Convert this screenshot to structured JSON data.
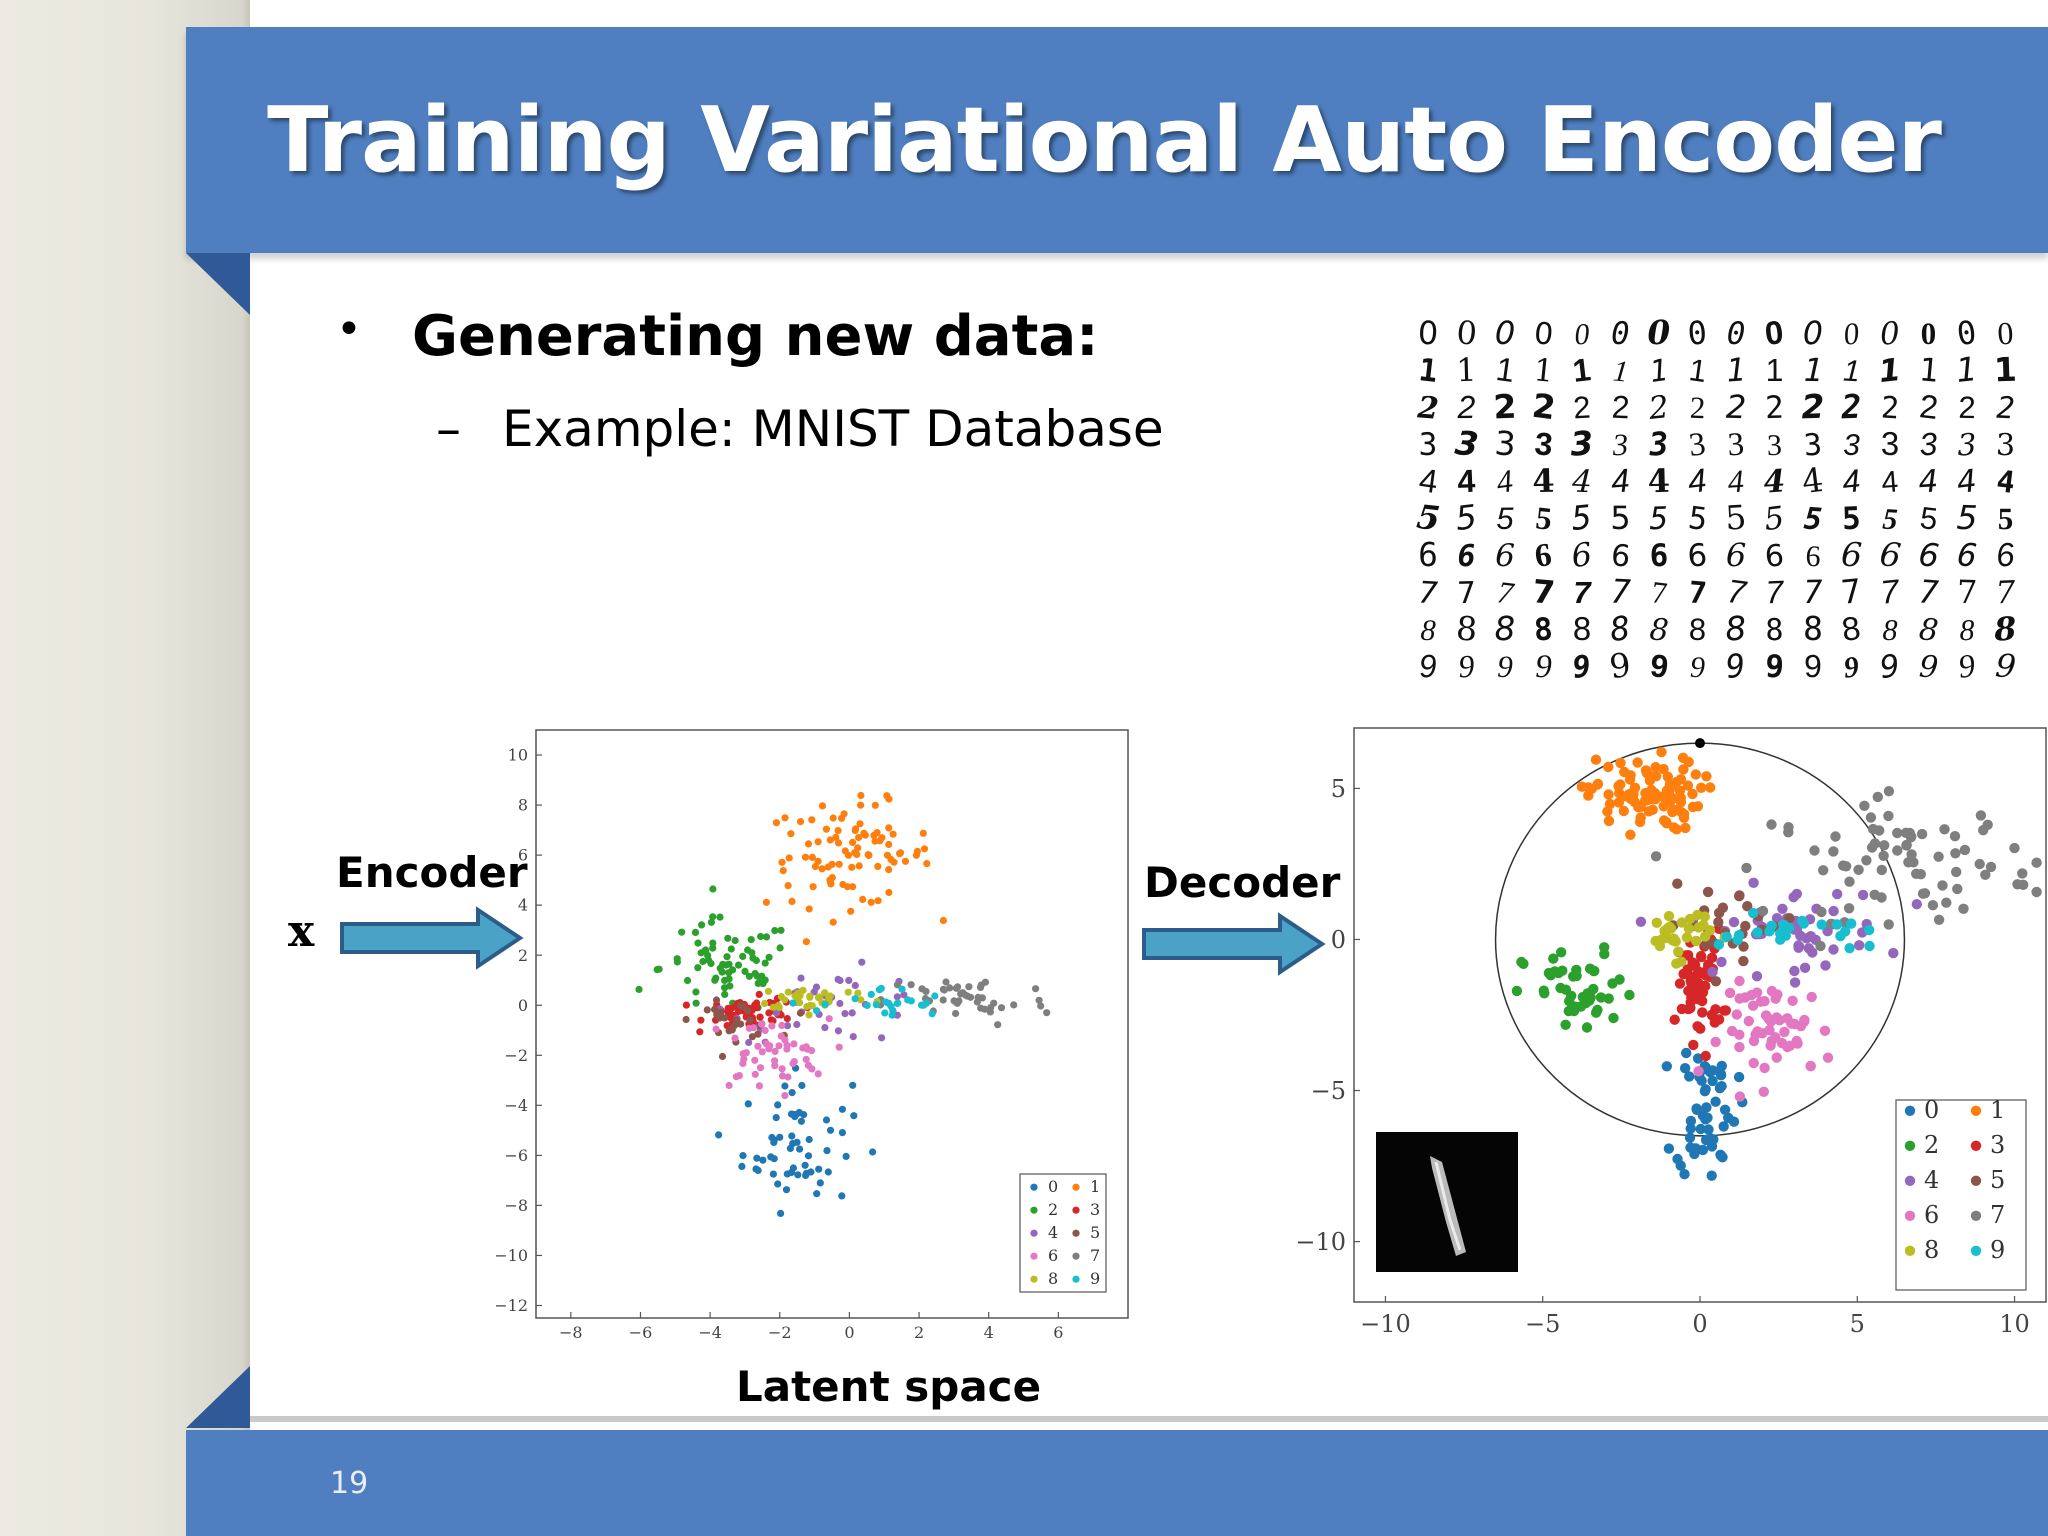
{
  "slide": {
    "title": "Training Variational Auto Encoder",
    "bullet": "Generating new data:",
    "sub_bullet": "Example: MNIST Database",
    "page_number": "19"
  },
  "labels": {
    "x": "x",
    "encoder": "Encoder",
    "decoder": "Decoder",
    "latent_space": "Latent space"
  },
  "mnist_rows": [
    "0",
    "1",
    "2",
    "3",
    "4",
    "5",
    "6",
    "7",
    "8",
    "9"
  ],
  "colors": {
    "brand_blue": "#4f7fc0",
    "arrow_fill": "#4aa3c6",
    "arrow_stroke": "#2c5d8a",
    "digit_colors": [
      "#1f77b4",
      "#ff7f0e",
      "#2ca02c",
      "#d62728",
      "#9467bd",
      "#8c564b",
      "#e377c2",
      "#7f7f7f",
      "#bcbd22",
      "#17becf"
    ]
  },
  "chart_data": [
    {
      "type": "scatter",
      "name": "latent-space",
      "xlim": [
        -9,
        8
      ],
      "ylim": [
        -12.5,
        11
      ],
      "x_ticks": [
        "-8",
        "-6",
        "-4",
        "-2",
        "0",
        "2",
        "4",
        "6"
      ],
      "y_ticks": [
        "10",
        "8",
        "6",
        "4",
        "2",
        "0",
        "-2",
        "-4",
        "-6",
        "-8",
        "-10",
        "-12"
      ],
      "legend": [
        "0",
        "1",
        "2",
        "3",
        "4",
        "5",
        "6",
        "7",
        "8",
        "9"
      ],
      "legend_position": "bottom-right",
      "clusters": [
        {
          "digit": "0",
          "center": [
            -1.5,
            -5.5
          ],
          "spread": [
            1.3,
            2.2
          ],
          "count": 60
        },
        {
          "digit": "1",
          "center": [
            0.0,
            6.0
          ],
          "spread": [
            2.0,
            1.7
          ],
          "count": 90
        },
        {
          "digit": "2",
          "center": [
            -3.5,
            1.5
          ],
          "spread": [
            1.6,
            1.6
          ],
          "count": 70
        },
        {
          "digit": "3",
          "center": [
            -2.8,
            -0.3
          ],
          "spread": [
            1.1,
            0.5
          ],
          "count": 60
        },
        {
          "digit": "4",
          "center": [
            -0.5,
            0.0
          ],
          "spread": [
            2.4,
            1.2
          ],
          "count": 35
        },
        {
          "digit": "5",
          "center": [
            -3.3,
            -0.6
          ],
          "spread": [
            1.0,
            0.6
          ],
          "count": 25
        },
        {
          "digit": "6",
          "center": [
            -2.4,
            -2.0
          ],
          "spread": [
            1.5,
            1.2
          ],
          "count": 50
        },
        {
          "digit": "7",
          "center": [
            3.4,
            0.2
          ],
          "spread": [
            2.0,
            0.9
          ],
          "count": 45
        },
        {
          "digit": "8",
          "center": [
            -1.0,
            0.3
          ],
          "spread": [
            1.4,
            0.4
          ],
          "count": 35
        },
        {
          "digit": "9",
          "center": [
            1.0,
            0.0
          ],
          "spread": [
            1.5,
            0.6
          ],
          "count": 25
        }
      ]
    },
    {
      "type": "scatter",
      "name": "decoder-space",
      "xlim": [
        -11,
        11
      ],
      "ylim": [
        -12,
        7
      ],
      "x_ticks": [
        "-10",
        "-5",
        "0",
        "5",
        "10"
      ],
      "y_ticks": [
        "5",
        "0",
        "-5",
        "-10"
      ],
      "legend": [
        "0",
        "1",
        "2",
        "3",
        "4",
        "5",
        "6",
        "7",
        "8",
        "9"
      ],
      "legend_position": "bottom-right",
      "circle": {
        "center": [
          0,
          0
        ],
        "radius": 6.5
      },
      "clusters": [
        {
          "digit": "0",
          "center": [
            0.2,
            -5.5
          ],
          "spread": [
            0.8,
            2.0
          ],
          "count": 55
        },
        {
          "digit": "1",
          "center": [
            -1.8,
            4.8
          ],
          "spread": [
            1.5,
            1.0
          ],
          "count": 90
        },
        {
          "digit": "2",
          "center": [
            -3.8,
            -1.8
          ],
          "spread": [
            1.5,
            1.2
          ],
          "count": 45
        },
        {
          "digit": "3",
          "center": [
            0.0,
            -1.5
          ],
          "spread": [
            0.6,
            1.5
          ],
          "count": 60
        },
        {
          "digit": "4",
          "center": [
            2.8,
            0.3
          ],
          "spread": [
            2.6,
            1.2
          ],
          "count": 50
        },
        {
          "digit": "5",
          "center": [
            1.0,
            0.5
          ],
          "spread": [
            1.8,
            1.0
          ],
          "count": 25
        },
        {
          "digit": "6",
          "center": [
            2.5,
            -3.0
          ],
          "spread": [
            1.5,
            1.3
          ],
          "count": 55
        },
        {
          "digit": "7",
          "center": [
            6.5,
            2.6
          ],
          "spread": [
            3.5,
            1.6
          ],
          "count": 75
        },
        {
          "digit": "8",
          "center": [
            -0.7,
            0.2
          ],
          "spread": [
            0.9,
            0.7
          ],
          "count": 30
        },
        {
          "digit": "9",
          "center": [
            3.0,
            0.2
          ],
          "spread": [
            2.0,
            0.5
          ],
          "count": 25
        }
      ]
    }
  ]
}
